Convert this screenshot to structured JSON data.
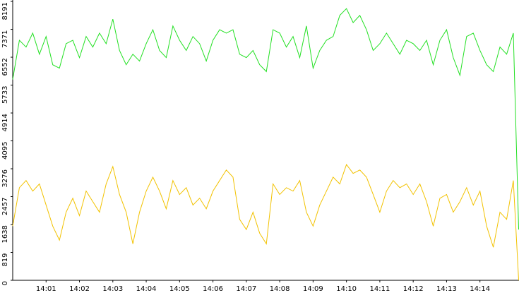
{
  "chart_data": {
    "type": "line",
    "x": [
      840.0,
      840.2,
      840.4,
      840.6,
      840.8,
      841.0,
      841.2,
      841.4,
      841.6,
      841.8,
      842.0,
      842.2,
      842.4,
      842.6,
      842.8,
      843.0,
      843.2,
      843.4,
      843.6,
      843.8,
      844.0,
      844.2,
      844.4,
      844.6,
      844.8,
      845.0,
      845.2,
      845.4,
      845.6,
      845.8,
      846.0,
      846.2,
      846.4,
      846.6,
      846.8,
      847.0,
      847.2,
      847.4,
      847.6,
      847.8,
      848.0,
      848.2,
      848.4,
      848.6,
      848.8,
      849.0,
      849.2,
      849.4,
      849.6,
      849.8,
      850.0,
      850.2,
      850.4,
      850.6,
      850.8,
      851.0,
      851.2,
      851.4,
      851.6,
      851.8,
      852.0,
      852.2,
      852.4,
      852.6,
      852.8,
      853.0,
      853.2,
      853.4,
      853.6,
      853.8,
      854.0,
      854.2,
      854.4,
      854.6,
      854.8,
      855.0,
      855.16
    ],
    "series": [
      {
        "color": "#22e022",
        "values": [
          5900,
          7050,
          6850,
          7260,
          6640,
          7160,
          6330,
          6230,
          6950,
          7050,
          6540,
          7160,
          6850,
          7260,
          6950,
          7670,
          6750,
          6330,
          6640,
          6440,
          6950,
          7360,
          6750,
          6540,
          7470,
          7050,
          6750,
          7160,
          6950,
          6440,
          7050,
          7360,
          7260,
          7360,
          6640,
          6540,
          6750,
          6330,
          6130,
          7360,
          7260,
          6850,
          7160,
          6540,
          7470,
          6230,
          6750,
          7050,
          7160,
          7780,
          7980,
          7570,
          7780,
          7360,
          6750,
          6950,
          7260,
          6950,
          6640,
          7050,
          6950,
          6750,
          7050,
          6330,
          7050,
          7360,
          6540,
          6020,
          7160,
          7260,
          6750,
          6330,
          6130,
          6850,
          6640,
          7260,
          1490
        ]
      },
      {
        "color": "#f2c200",
        "values": [
          1590,
          2720,
          2930,
          2620,
          2830,
          2210,
          1590,
          1180,
          2000,
          2410,
          1900,
          2620,
          2310,
          2000,
          2830,
          3340,
          2520,
          2000,
          1070,
          2000,
          2620,
          3030,
          2620,
          2100,
          2930,
          2520,
          2720,
          2210,
          2410,
          2100,
          2620,
          2930,
          3240,
          3030,
          1790,
          1490,
          2000,
          1380,
          1070,
          2830,
          2520,
          2720,
          2620,
          2930,
          2000,
          1590,
          2210,
          2620,
          3030,
          2830,
          3400,
          3140,
          3240,
          3030,
          2520,
          2000,
          2620,
          2930,
          2720,
          2830,
          2520,
          2830,
          2310,
          1590,
          2410,
          2520,
          2000,
          2310,
          2720,
          2210,
          2620,
          1590,
          970,
          2000,
          1790,
          2930,
          0
        ]
      }
    ],
    "xlim": [
      840.0,
      855.17
    ],
    "xticks": [
      {
        "value": 841,
        "label": "14:01"
      },
      {
        "value": 842,
        "label": "14:02"
      },
      {
        "value": 843,
        "label": "14:03"
      },
      {
        "value": 844,
        "label": "14:04"
      },
      {
        "value": 845,
        "label": "14:05"
      },
      {
        "value": 846,
        "label": "14:06"
      },
      {
        "value": 847,
        "label": "14:07"
      },
      {
        "value": 848,
        "label": "14:08"
      },
      {
        "value": 849,
        "label": "14:09"
      },
      {
        "value": 850,
        "label": "14:10"
      },
      {
        "value": 851,
        "label": "14:11"
      },
      {
        "value": 852,
        "label": "14:12"
      },
      {
        "value": 853,
        "label": "14:13"
      },
      {
        "value": 854,
        "label": "14:14"
      }
    ],
    "ylim": [
      0,
      8191
    ],
    "yticks": [
      0,
      819,
      1638,
      2457,
      3276,
      4095,
      4914,
      5733,
      6552,
      7371,
      8191
    ]
  }
}
